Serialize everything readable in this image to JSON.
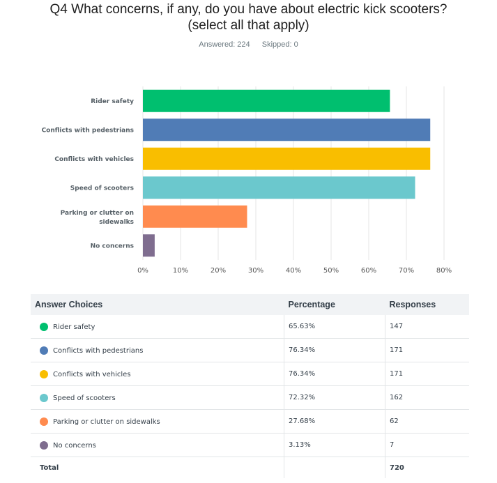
{
  "question": {
    "title_line1": "Q4 What concerns, if any, do you have about electric kick scooters?",
    "title_line2": "(select all that apply)",
    "answered": "Answered: 224",
    "skipped": "Skipped: 0"
  },
  "chart_data": {
    "type": "bar",
    "orientation": "horizontal",
    "categories": [
      "Rider safety",
      "Conflicts with pedestrians",
      "Conflicts with vehicles",
      "Speed of scooters",
      "Parking or clutter on sidewalks",
      "No concerns"
    ],
    "values": [
      65.63,
      76.34,
      76.34,
      72.32,
      27.68,
      3.13
    ],
    "colors": [
      "#00bf6f",
      "#507cb6",
      "#f9be00",
      "#6bc8cd",
      "#ff8b4f",
      "#7f6d8f"
    ],
    "xlim": [
      0,
      80
    ],
    "ticks": [
      "0%",
      "10%",
      "20%",
      "30%",
      "40%",
      "50%",
      "60%",
      "70%",
      "80%"
    ],
    "grid": true
  },
  "table": {
    "headers": [
      "Answer Choices",
      "Percentage",
      "Responses"
    ],
    "rows": [
      {
        "label": "Rider safety",
        "percentage": "65.63%",
        "responses": "147",
        "color": "#00bf6f"
      },
      {
        "label": "Conflicts with pedestrians",
        "percentage": "76.34%",
        "responses": "171",
        "color": "#507cb6"
      },
      {
        "label": "Conflicts with vehicles",
        "percentage": "76.34%",
        "responses": "171",
        "color": "#f9be00"
      },
      {
        "label": "Speed of scooters",
        "percentage": "72.32%",
        "responses": "162",
        "color": "#6bc8cd"
      },
      {
        "label": "Parking or clutter on sidewalks",
        "percentage": "27.68%",
        "responses": "62",
        "color": "#ff8b4f"
      },
      {
        "label": "No concerns",
        "percentage": "3.13%",
        "responses": "7",
        "color": "#7f6d8f"
      }
    ],
    "total_label": "Total",
    "total_value": "720"
  }
}
